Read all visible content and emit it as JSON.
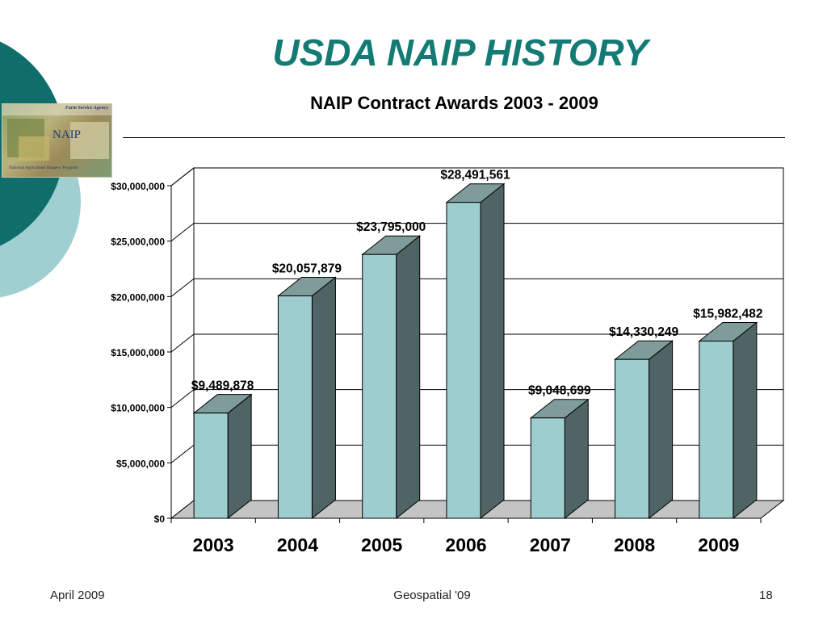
{
  "slide": {
    "title": "USDA NAIP HISTORY",
    "logo": {
      "agency": "Farm Service Agency",
      "abbreviation": "NAIP",
      "program": "National Agriculture Imagery Program"
    },
    "footer": {
      "left": "April 2009",
      "center": "Geospatial '09",
      "page": "18"
    },
    "colors": {
      "title": "#137b74",
      "bar_front": "#9ecdcf",
      "bar_side": "#4f6464",
      "bar_top": "#7f9c9b",
      "floor": "#c4c4c4",
      "deco_dark": "#0f6e69",
      "deco_light": "#9fcfd0"
    }
  },
  "chart_data": {
    "type": "bar",
    "title": "NAIP Contract Awards 2003 - 2009",
    "xlabel": "",
    "ylabel": "",
    "categories": [
      "2003",
      "2004",
      "2005",
      "2006",
      "2007",
      "2008",
      "2009"
    ],
    "values": [
      9489878,
      20057879,
      23795000,
      28491561,
      9048699,
      14330249,
      15982482
    ],
    "data_labels": [
      "$9,489,878",
      "$20,057,879",
      "$23,795,000",
      "$28,491,561",
      "$9,048,699",
      "$14,330,249",
      "$15,982,482"
    ],
    "ylim": [
      0,
      30000000
    ],
    "y_ticks": [
      0,
      5000000,
      10000000,
      15000000,
      20000000,
      25000000,
      30000000
    ],
    "y_tick_labels": [
      "$0",
      "$5,000,000",
      "$10,000,000",
      "$15,000,000",
      "$20,000,000",
      "$25,000,000",
      "$30,000,000"
    ],
    "grid": true,
    "legend": "none",
    "style": "3d"
  }
}
